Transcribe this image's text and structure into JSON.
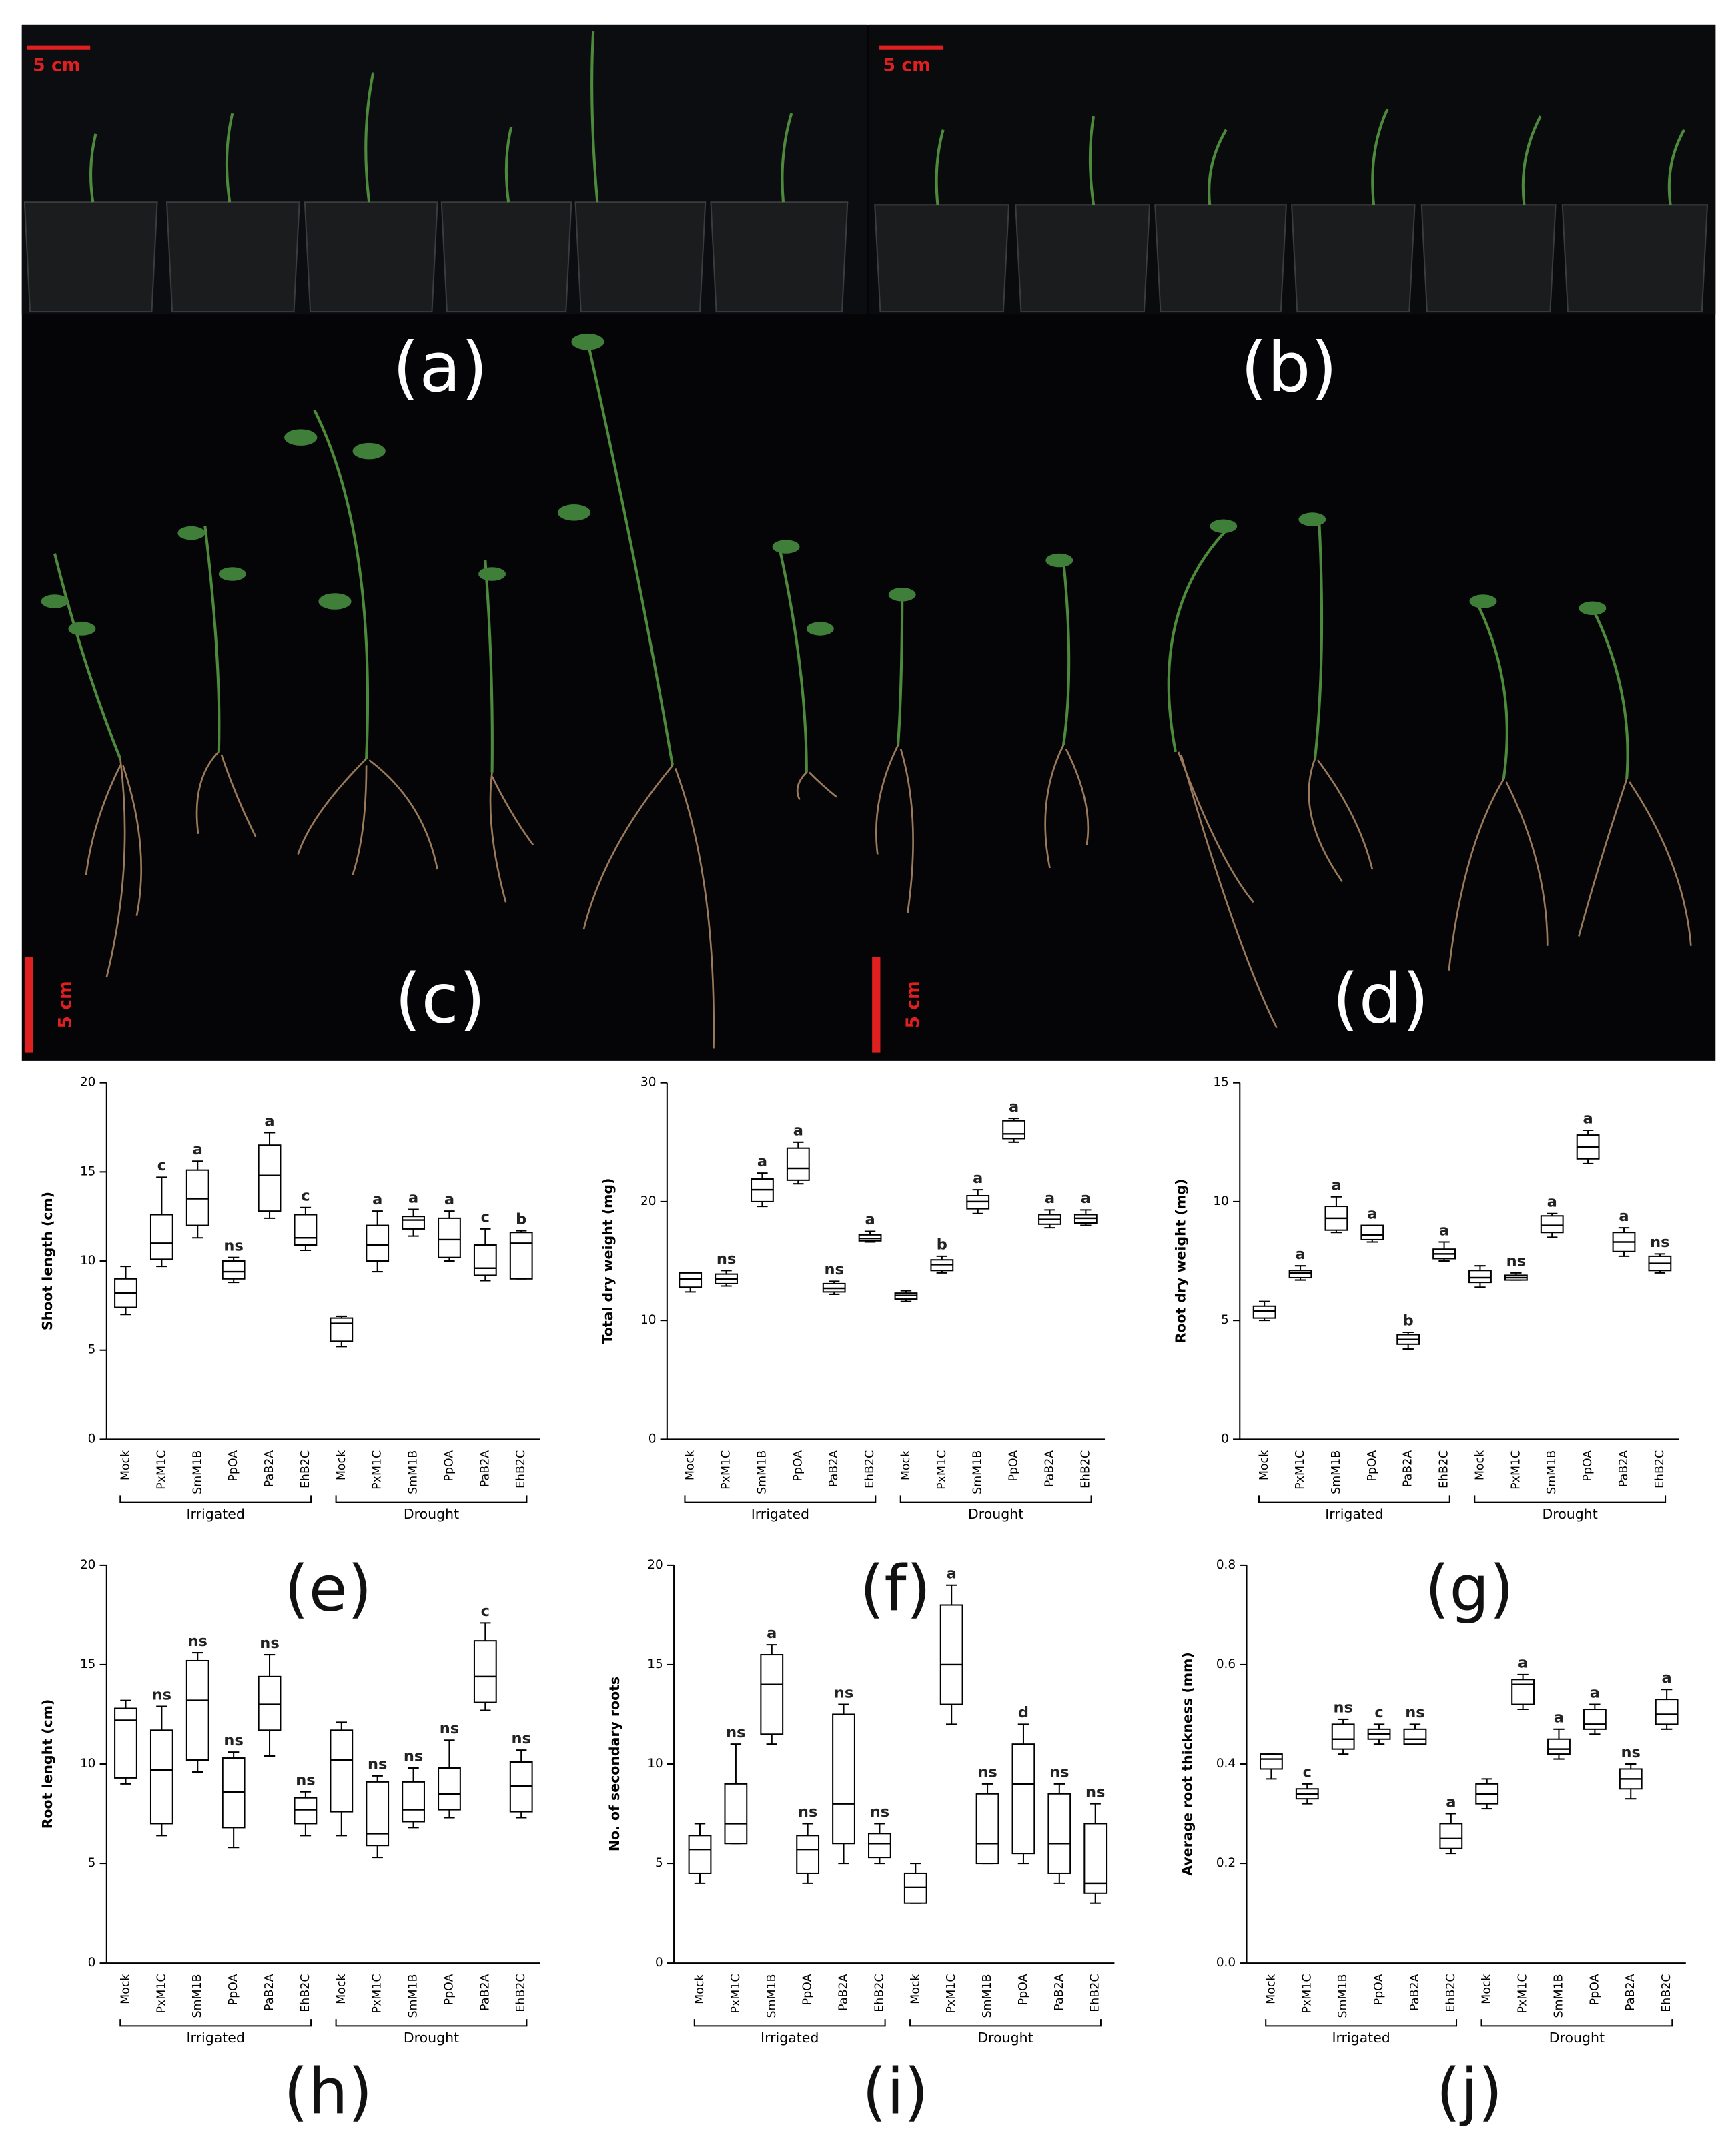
{
  "photos": {
    "panels": [
      {
        "label": "(a)",
        "scale_bar": "5 cm"
      },
      {
        "label": "(b)",
        "scale_bar": "5 cm"
      },
      {
        "label": "(c)",
        "scale_bar": "5 cm"
      },
      {
        "label": "(d)",
        "scale_bar": "5 cm"
      }
    ]
  },
  "chart_data": [
    {
      "type": "box",
      "panel_label": "(e)",
      "ylabel": "Shoot length (cm)",
      "categories": [
        "Mock",
        "PxM1C",
        "SmM1B",
        "PpOA",
        "PaB2A",
        "EhB2C",
        "Mock",
        "PxM1C",
        "SmM1B",
        "PpOA",
        "PaB2A",
        "EhB2C"
      ],
      "groups": [
        "Irrigated",
        "Drought"
      ],
      "min": [
        7.0,
        9.7,
        11.3,
        8.8,
        12.4,
        10.6,
        5.2,
        9.4,
        11.4,
        10.0,
        8.9,
        9.0
      ],
      "q1": [
        7.4,
        10.1,
        12.0,
        9.0,
        12.8,
        10.9,
        5.5,
        10.0,
        11.8,
        10.2,
        9.2,
        9.0
      ],
      "median": [
        8.2,
        11.0,
        13.5,
        9.4,
        14.8,
        11.3,
        6.5,
        10.9,
        12.3,
        11.2,
        9.6,
        11.0
      ],
      "q3": [
        9.0,
        12.6,
        15.1,
        10.0,
        16.5,
        12.6,
        6.8,
        12.0,
        12.5,
        12.4,
        10.9,
        11.6
      ],
      "max": [
        9.7,
        14.7,
        15.6,
        10.2,
        17.2,
        13.0,
        6.9,
        12.8,
        12.9,
        12.8,
        11.8,
        11.7
      ],
      "letters": [
        null,
        "c",
        "a",
        "ns",
        "a",
        "c",
        null,
        "a",
        "a",
        "a",
        "c",
        "b"
      ],
      "ylim": [
        0,
        20
      ],
      "yticks": [
        0,
        5,
        10,
        15,
        20
      ]
    },
    {
      "type": "box",
      "panel_label": "(f)",
      "ylabel": "Total dry weight (mg)",
      "categories": [
        "Mock",
        "PxM1C",
        "SmM1B",
        "PpOA",
        "PaB2A",
        "EhB2C",
        "Mock",
        "PxM1C",
        "SmM1B",
        "PpOA",
        "PaB2A",
        "EhB2C"
      ],
      "groups": [
        "Irrigated",
        "Drought"
      ],
      "min": [
        12.4,
        12.9,
        19.6,
        21.5,
        12.2,
        16.6,
        11.6,
        14.0,
        19.0,
        25.0,
        17.8,
        18.0
      ],
      "q1": [
        12.8,
        13.1,
        20.0,
        21.8,
        12.4,
        16.7,
        11.8,
        14.2,
        19.4,
        25.3,
        18.1,
        18.2
      ],
      "median": [
        13.5,
        13.5,
        21.0,
        22.8,
        12.7,
        16.9,
        12.1,
        14.7,
        20.0,
        25.7,
        18.5,
        18.6
      ],
      "q3": [
        14.0,
        13.9,
        21.9,
        24.5,
        13.1,
        17.2,
        12.3,
        15.1,
        20.5,
        26.8,
        18.9,
        18.9
      ],
      "max": [
        14.0,
        14.2,
        22.4,
        25.0,
        13.3,
        17.5,
        12.5,
        15.4,
        21.0,
        27.0,
        19.3,
        19.3
      ],
      "letters": [
        null,
        "ns",
        "a",
        "a",
        "ns",
        "a",
        null,
        "b",
        "a",
        "a",
        "a",
        "a"
      ],
      "ylim": [
        0,
        30
      ],
      "yticks": [
        0,
        10,
        20,
        30
      ]
    },
    {
      "type": "box",
      "panel_label": "(g)",
      "ylabel": "Root dry weight (mg)",
      "categories": [
        "Mock",
        "PxM1C",
        "SmM1B",
        "PpOA",
        "PaB2A",
        "EhB2C",
        "Mock",
        "PxM1C",
        "SmM1B",
        "PpOA",
        "PaB2A",
        "EhB2C"
      ],
      "groups": [
        "Irrigated",
        "Drought"
      ],
      "min": [
        5.0,
        6.7,
        8.7,
        8.3,
        3.8,
        7.5,
        6.4,
        6.7,
        8.5,
        11.6,
        7.7,
        7.0
      ],
      "q1": [
        5.1,
        6.8,
        8.8,
        8.4,
        4.0,
        7.6,
        6.6,
        6.7,
        8.7,
        11.8,
        7.9,
        7.1
      ],
      "median": [
        5.4,
        7.0,
        9.3,
        8.6,
        4.2,
        7.8,
        6.8,
        6.8,
        9.0,
        12.3,
        8.3,
        7.4
      ],
      "q3": [
        5.6,
        7.1,
        9.8,
        9.0,
        4.4,
        8.0,
        7.1,
        6.9,
        9.4,
        12.8,
        8.7,
        7.7
      ],
      "max": [
        5.8,
        7.3,
        10.2,
        9.0,
        4.5,
        8.3,
        7.3,
        7.0,
        9.5,
        13.0,
        8.9,
        7.8
      ],
      "letters": [
        null,
        "a",
        "a",
        "a",
        "b",
        "a",
        null,
        "ns",
        "a",
        "a",
        "a",
        "ns"
      ],
      "ylim": [
        0,
        15
      ],
      "yticks": [
        0,
        5,
        10,
        15
      ]
    },
    {
      "type": "box",
      "panel_label": "(h)",
      "ylabel": "Root lenght (cm)",
      "categories": [
        "Mock",
        "PxM1C",
        "SmM1B",
        "PpOA",
        "PaB2A",
        "EhB2C",
        "Mock",
        "PxM1C",
        "SmM1B",
        "PpOA",
        "PaB2A",
        "EhB2C"
      ],
      "groups": [
        "Irrigated",
        "Drought"
      ],
      "min": [
        9.0,
        6.4,
        9.6,
        5.8,
        10.4,
        6.4,
        6.4,
        5.3,
        6.8,
        7.3,
        12.7,
        7.3
      ],
      "q1": [
        9.3,
        7.0,
        10.2,
        6.8,
        11.7,
        7.0,
        7.6,
        5.9,
        7.1,
        7.7,
        13.1,
        7.6
      ],
      "median": [
        12.2,
        9.7,
        13.2,
        8.6,
        13.0,
        7.7,
        10.2,
        6.5,
        7.7,
        8.5,
        14.4,
        8.9
      ],
      "q3": [
        12.8,
        11.7,
        15.2,
        10.3,
        14.4,
        8.3,
        11.7,
        9.1,
        9.1,
        9.8,
        16.2,
        10.1
      ],
      "max": [
        13.2,
        12.9,
        15.6,
        10.6,
        15.5,
        8.6,
        12.1,
        9.4,
        9.8,
        11.2,
        17.1,
        10.7
      ],
      "letters": [
        null,
        "ns",
        "ns",
        "ns",
        "ns",
        "ns",
        null,
        "ns",
        "ns",
        "ns",
        "c",
        "ns"
      ],
      "ylim": [
        0,
        20
      ],
      "yticks": [
        0,
        5,
        10,
        15,
        20
      ]
    },
    {
      "type": "box",
      "panel_label": "(i)",
      "ylabel": "No. of secondary roots",
      "categories": [
        "Mock",
        "PxM1C",
        "SmM1B",
        "PpOA",
        "PaB2A",
        "EhB2C",
        "Mock",
        "PxM1C",
        "SmM1B",
        "PpOA",
        "PaB2A",
        "EhB2C"
      ],
      "groups": [
        "Irrigated",
        "Drought"
      ],
      "min": [
        4,
        6,
        11,
        4,
        5,
        5,
        3,
        12,
        5,
        5,
        4,
        3
      ],
      "q1": [
        4.5,
        6,
        11.5,
        4.5,
        6,
        5.3,
        3,
        13,
        5,
        5.5,
        4.5,
        3.5
      ],
      "median": [
        5.7,
        7,
        14,
        5.7,
        8,
        6,
        3.8,
        15,
        6,
        9,
        6,
        4
      ],
      "q3": [
        6.4,
        9,
        15.5,
        6.4,
        12.5,
        6.5,
        4.5,
        18,
        8.5,
        11,
        8.5,
        7
      ],
      "max": [
        7,
        11,
        16,
        7,
        13,
        7,
        5,
        19,
        9,
        12,
        9,
        8
      ],
      "letters": [
        null,
        "ns",
        "a",
        "ns",
        "ns",
        "ns",
        null,
        "a",
        "ns",
        "d",
        "ns",
        "ns"
      ],
      "ylim": [
        0,
        20
      ],
      "yticks": [
        0,
        5,
        10,
        15,
        20
      ]
    },
    {
      "type": "box",
      "panel_label": "(j)",
      "ylabel": "Average root thickness (mm)",
      "categories": [
        "Mock",
        "PxM1C",
        "SmM1B",
        "PpOA",
        "PaB2A",
        "EhB2C",
        "Mock",
        "PxM1C",
        "SmM1B",
        "PpOA",
        "PaB2A",
        "EhB2C"
      ],
      "groups": [
        "Irrigated",
        "Drought"
      ],
      "min": [
        0.37,
        0.32,
        0.42,
        0.44,
        0.44,
        0.22,
        0.31,
        0.51,
        0.41,
        0.46,
        0.33,
        0.47
      ],
      "q1": [
        0.39,
        0.33,
        0.43,
        0.45,
        0.44,
        0.23,
        0.32,
        0.52,
        0.42,
        0.47,
        0.35,
        0.48
      ],
      "median": [
        0.41,
        0.34,
        0.45,
        0.46,
        0.45,
        0.25,
        0.34,
        0.56,
        0.43,
        0.48,
        0.37,
        0.5
      ],
      "q3": [
        0.42,
        0.35,
        0.48,
        0.47,
        0.47,
        0.28,
        0.36,
        0.57,
        0.45,
        0.51,
        0.39,
        0.53
      ],
      "max": [
        0.42,
        0.36,
        0.49,
        0.48,
        0.48,
        0.3,
        0.37,
        0.58,
        0.47,
        0.52,
        0.4,
        0.55
      ],
      "letters": [
        null,
        "c",
        "ns",
        "c",
        "ns",
        "a",
        null,
        "a",
        "a",
        "a",
        "ns",
        "a"
      ],
      "ylim": [
        0,
        0.8
      ],
      "yticks": [
        {
          "value": 0,
          "label": "0.0"
        },
        0.2,
        0.4,
        0.6,
        0.8
      ]
    }
  ]
}
